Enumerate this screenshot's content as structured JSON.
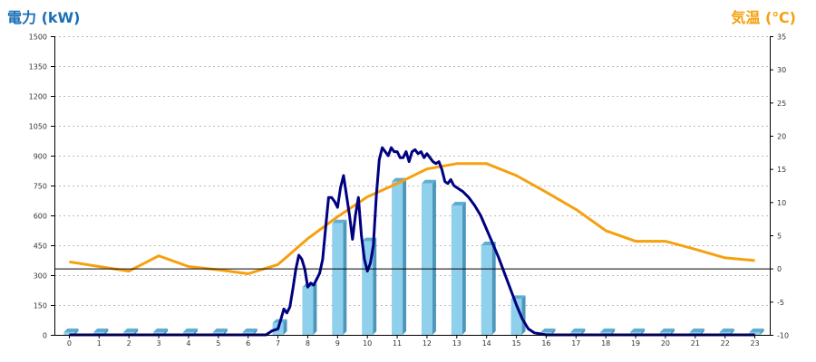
{
  "chart_data": {
    "type": "bar",
    "left_axis_title": "電力 (kW)",
    "right_axis_title": "気温 (℃)",
    "colors": {
      "left_title": "#1a6fb5",
      "right_title": "#f5a00f",
      "bar_front": "#8fd0ec",
      "bar_top": "#5faed2",
      "bar_side": "#4d97bd",
      "power_line": "#000080",
      "temp_line": "#f5a00f",
      "grid": "#bbbbbb",
      "zero_line": "#000000"
    },
    "x_ticks": [
      "0",
      "1",
      "2",
      "3",
      "4",
      "5",
      "6",
      "7",
      "8",
      "9",
      "10",
      "11",
      "12",
      "13",
      "14",
      "15",
      "16",
      "17",
      "18",
      "19",
      "20",
      "21",
      "22",
      "23"
    ],
    "left_axis": {
      "min": 0,
      "max": 1500,
      "ticks": [
        0,
        150,
        300,
        450,
        600,
        750,
        900,
        1050,
        1200,
        1350,
        1500
      ]
    },
    "right_axis": {
      "min": -10,
      "max": 35,
      "ticks": [
        -10,
        -5,
        0,
        5,
        10,
        15,
        20,
        25,
        30,
        35
      ]
    },
    "bars": {
      "axis": "left",
      "values": [
        0,
        0,
        0,
        0,
        0,
        0,
        0,
        60,
        240,
        560,
        470,
        770,
        760,
        650,
        450,
        180,
        10,
        0,
        0,
        0,
        0,
        0,
        0,
        0
      ]
    },
    "temperature": {
      "axis": "right",
      "x": [
        0,
        1,
        2,
        3,
        4,
        5,
        6,
        7,
        8,
        9,
        10,
        11,
        12,
        13,
        14,
        15,
        16,
        17,
        18,
        19,
        20,
        21,
        22,
        23
      ],
      "values": [
        1.0,
        0.3,
        -0.4,
        1.9,
        0.3,
        -0.2,
        -0.8,
        0.6,
        4.5,
        7.8,
        10.8,
        12.8,
        15.0,
        15.8,
        15.8,
        14.0,
        11.5,
        8.9,
        5.7,
        4.1,
        4.1,
        2.9,
        1.6,
        1.2
      ]
    },
    "power": {
      "axis": "left",
      "x": [
        0,
        6.4,
        6.6,
        6.8,
        7.0,
        7.1,
        7.2,
        7.3,
        7.4,
        7.5,
        7.6,
        7.7,
        7.8,
        7.9,
        8.0,
        8.1,
        8.2,
        8.3,
        8.4,
        8.5,
        8.6,
        8.7,
        8.8,
        8.9,
        9.0,
        9.1,
        9.2,
        9.3,
        9.4,
        9.5,
        9.6,
        9.7,
        9.8,
        9.9,
        10.0,
        10.1,
        10.2,
        10.3,
        10.4,
        10.5,
        10.6,
        10.7,
        10.8,
        10.9,
        11.0,
        11.1,
        11.2,
        11.3,
        11.4,
        11.5,
        11.6,
        11.7,
        11.8,
        11.9,
        12.0,
        12.1,
        12.2,
        12.3,
        12.4,
        12.5,
        12.6,
        12.7,
        12.8,
        12.9,
        13.0,
        13.2,
        13.4,
        13.6,
        13.8,
        14.0,
        14.2,
        14.4,
        14.6,
        14.8,
        15.0,
        15.2,
        15.4,
        15.6,
        15.8,
        16.0,
        23.0
      ],
      "values": [
        0,
        0,
        0,
        20,
        30,
        80,
        130,
        110,
        140,
        230,
        330,
        400,
        380,
        330,
        240,
        260,
        250,
        280,
        310,
        380,
        540,
        690,
        690,
        670,
        640,
        740,
        800,
        700,
        600,
        480,
        600,
        690,
        500,
        380,
        320,
        360,
        450,
        700,
        880,
        940,
        920,
        900,
        940,
        920,
        920,
        890,
        890,
        920,
        870,
        920,
        930,
        910,
        920,
        890,
        910,
        890,
        870,
        860,
        870,
        830,
        770,
        760,
        780,
        750,
        740,
        720,
        690,
        650,
        600,
        530,
        460,
        390,
        310,
        230,
        150,
        80,
        30,
        10,
        5,
        0,
        0
      ]
    }
  }
}
